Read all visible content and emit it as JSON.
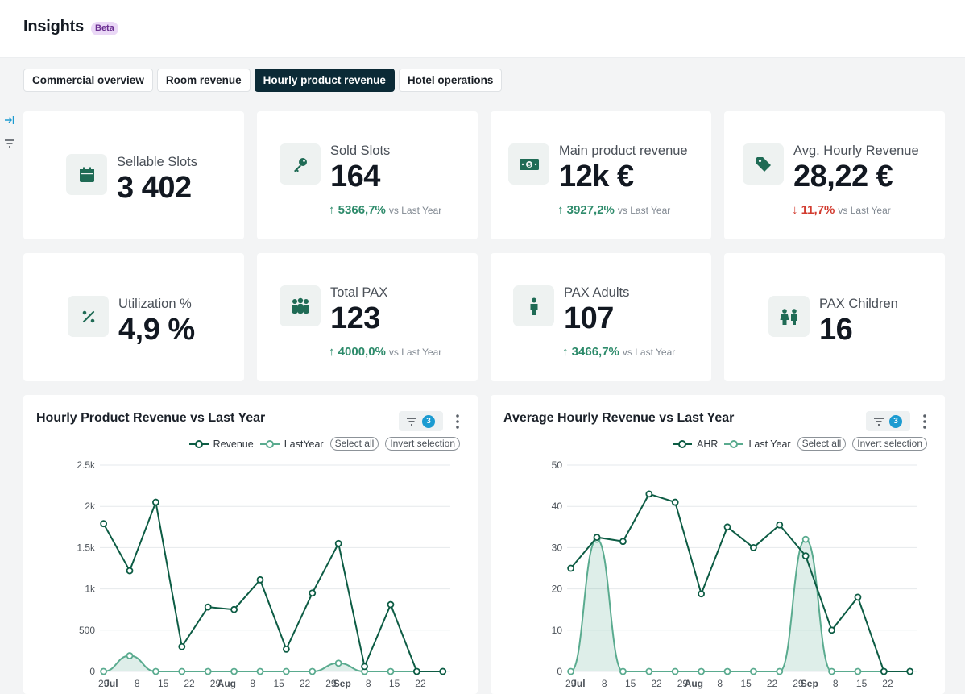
{
  "header": {
    "title": "Insights",
    "badge": "Beta"
  },
  "tabs": [
    {
      "label": "Commercial overview",
      "active": false
    },
    {
      "label": "Room revenue",
      "active": false
    },
    {
      "label": "Hourly product revenue",
      "active": true
    },
    {
      "label": "Hotel operations",
      "active": false
    }
  ],
  "sidebar": {
    "icons": [
      "collapse-icon",
      "filter-icon"
    ]
  },
  "kpis": [
    {
      "label": "Sellable Slots",
      "value": "3 402",
      "icon": "calendar-icon"
    },
    {
      "label": "Sold Slots",
      "value": "164",
      "delta": "5366,7%",
      "direction": "up",
      "vs": "vs Last Year",
      "icon": "key-icon"
    },
    {
      "label": "Main product revenue",
      "value": "12k €",
      "delta": "3927,2%",
      "direction": "up",
      "vs": "vs Last Year",
      "icon": "money-icon"
    },
    {
      "label": "Avg. Hourly Revenue",
      "value": "28,22 €",
      "delta": "11,7%",
      "direction": "down",
      "vs": "vs Last Year",
      "icon": "tag-icon"
    },
    {
      "label": "Utilization %",
      "value": "4,9 %",
      "icon": "percent-icon"
    },
    {
      "label": "Total PAX",
      "value": "123",
      "delta": "4000,0%",
      "direction": "up",
      "vs": "vs Last Year",
      "icon": "group-icon"
    },
    {
      "label": "PAX Adults",
      "value": "107",
      "delta": "3466,7%",
      "direction": "up",
      "vs": "vs Last Year",
      "icon": "person-icon"
    },
    {
      "label": "PAX Children",
      "value": "16",
      "icon": "children-icon"
    }
  ],
  "colors": {
    "accent": "#0d5c44",
    "secondary": "#5aab8f",
    "tab_active": "#0b2a36",
    "up": "#2e8b6b",
    "down": "#d23b2f",
    "badge": "#1c9bd1"
  },
  "charts": [
    {
      "title": "Hourly Product Revenue vs Last Year",
      "filter_count": "3",
      "select_all": "Select all",
      "invert": "Invert selection"
    },
    {
      "title": "Average Hourly Revenue vs Last Year",
      "filter_count": "3",
      "select_all": "Select all",
      "invert": "Invert selection"
    }
  ],
  "chart_data": [
    {
      "type": "line",
      "title": "Hourly Product Revenue vs Last Year",
      "ylim": [
        0,
        2500
      ],
      "y_ticks": [
        "0",
        "500",
        "1k",
        "1.5k",
        "2k",
        "2.5k"
      ],
      "y_tick_values": [
        0,
        500,
        1000,
        1500,
        2000,
        2500
      ],
      "x_ticks": [
        "29",
        "Jul",
        "8",
        "15",
        "22",
        "29",
        "Aug",
        "8",
        "15",
        "22",
        "29",
        "Sep",
        "8",
        "15",
        "22"
      ],
      "x_tick_days": [
        0,
        2,
        9,
        16,
        23,
        30,
        33,
        40,
        47,
        54,
        61,
        64,
        71,
        78,
        85
      ],
      "x_domain": [
        -1,
        93
      ],
      "grid": true,
      "legend": "top-right",
      "series": [
        {
          "name": "Revenue",
          "color": "#0d5c44",
          "area": false,
          "x": [
            0,
            7,
            14,
            21,
            28,
            35,
            42,
            49,
            56,
            63,
            70,
            77,
            84,
            91
          ],
          "values": [
            1790,
            1220,
            2050,
            300,
            780,
            750,
            1110,
            270,
            950,
            1550,
            60,
            810,
            0,
            0
          ]
        },
        {
          "name": "LastYear",
          "color": "#5aab8f",
          "area": true,
          "x": [
            0,
            7,
            14,
            21,
            28,
            35,
            42,
            49,
            56,
            63,
            70,
            77,
            84,
            91
          ],
          "values": [
            0,
            190,
            0,
            0,
            0,
            0,
            0,
            0,
            0,
            100,
            0,
            0,
            0,
            0
          ]
        }
      ]
    },
    {
      "type": "line",
      "title": "Average Hourly Revenue vs Last Year",
      "ylim": [
        0,
        50
      ],
      "y_ticks": [
        "0",
        "10",
        "20",
        "30",
        "40",
        "50"
      ],
      "y_tick_values": [
        0,
        10,
        20,
        30,
        40,
        50
      ],
      "x_ticks": [
        "29",
        "Jul",
        "8",
        "15",
        "22",
        "29",
        "Aug",
        "8",
        "15",
        "22",
        "29",
        "Sep",
        "8",
        "15",
        "22"
      ],
      "x_tick_days": [
        0,
        2,
        9,
        16,
        23,
        30,
        33,
        40,
        47,
        54,
        61,
        64,
        71,
        78,
        85
      ],
      "x_domain": [
        -1,
        93
      ],
      "grid": true,
      "legend": "top-right",
      "series": [
        {
          "name": "AHR",
          "color": "#0d5c44",
          "area": false,
          "x": [
            0,
            7,
            14,
            21,
            28,
            35,
            42,
            49,
            56,
            63,
            70,
            77,
            84,
            91
          ],
          "values": [
            25,
            32.5,
            31.5,
            43,
            41,
            18.8,
            35,
            30,
            35.5,
            28,
            10,
            18,
            0,
            0
          ]
        },
        {
          "name": "Last Year",
          "color": "#5aab8f",
          "area": true,
          "x": [
            0,
            7,
            14,
            21,
            28,
            35,
            42,
            49,
            56,
            63,
            70,
            77,
            84,
            91
          ],
          "values": [
            0,
            32,
            0,
            0,
            0,
            0,
            0,
            0,
            0,
            32,
            0,
            0,
            0,
            0
          ]
        }
      ]
    }
  ]
}
